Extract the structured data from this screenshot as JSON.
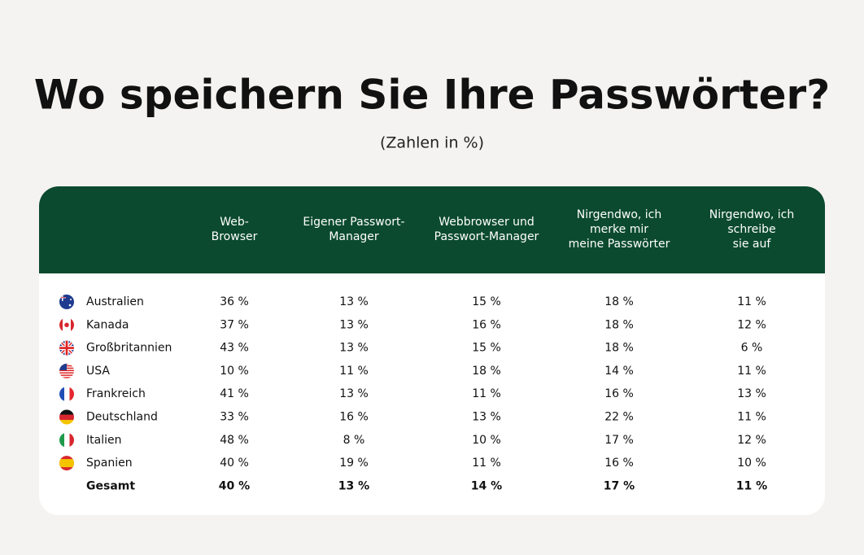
{
  "header": {
    "title": "Wo speichern Sie Ihre Passwörter?",
    "subtitle": "(Zahlen in %)"
  },
  "table": {
    "columns": [
      [
        "Web-",
        "Browser"
      ],
      [
        "Eigener Passwort-",
        "Manager"
      ],
      [
        "Webbrowser und",
        "Passwort-Manager"
      ],
      [
        "Nirgendwo, ich",
        "merke mir",
        "meine Passwörter"
      ],
      [
        "Nirgendwo, ich",
        "schreibe",
        "sie auf"
      ]
    ],
    "rows": [
      [
        "Australien",
        "36 %",
        "13 %",
        "15 %",
        "18 %",
        "11 %"
      ],
      [
        "Kanada",
        "37 %",
        "13 %",
        "16 %",
        "18 %",
        "12 %"
      ],
      [
        "Großbritannien",
        "43 %",
        "13 %",
        "15 %",
        "18 %",
        "6 %"
      ],
      [
        "USA",
        "10 %",
        "11 %",
        "18 %",
        "14 %",
        "11 %"
      ],
      [
        "Frankreich",
        "41 %",
        "13 %",
        "11 %",
        "16 %",
        "13 %"
      ],
      [
        "Deutschland",
        "33 %",
        "16 %",
        "13 %",
        "22 %",
        "11 %"
      ],
      [
        "Italien",
        "48 %",
        "8 %",
        "10 %",
        "17 %",
        "12 %"
      ],
      [
        "Spanien",
        "40 %",
        "19 %",
        "11 %",
        "16 %",
        "10 %"
      ]
    ],
    "total": [
      "Gesamt",
      "40 %",
      "13 %",
      "14 %",
      "17 %",
      "11 %"
    ]
  }
}
